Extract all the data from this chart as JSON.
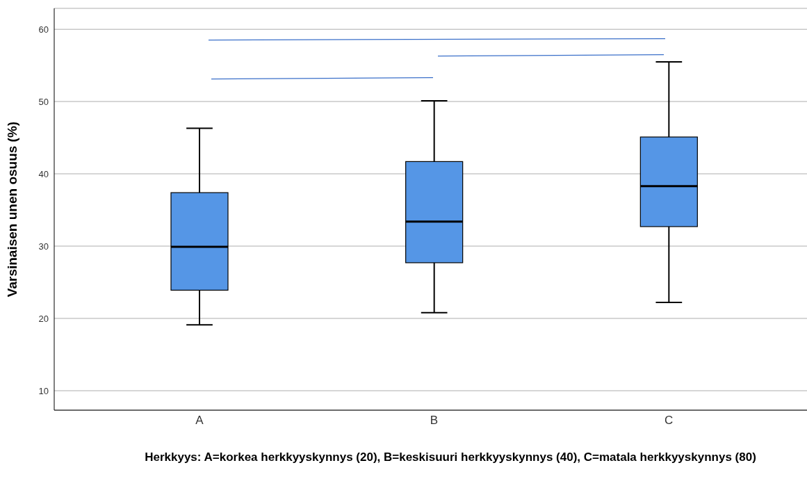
{
  "chart_data": {
    "type": "box",
    "categories": [
      "A",
      "B",
      "C"
    ],
    "boxes": [
      {
        "low": 19.1,
        "q1": 23.9,
        "median": 29.9,
        "q3": 37.4,
        "high": 46.3
      },
      {
        "low": 20.8,
        "q1": 27.7,
        "median": 33.4,
        "q3": 41.7,
        "high": 50.1
      },
      {
        "low": 22.2,
        "q1": 32.7,
        "median": 38.3,
        "q3": 45.1,
        "high": 55.5
      }
    ],
    "color": "#5596e6",
    "ylim": [
      7.3,
      62.9
    ],
    "yticks": [
      10,
      20,
      30,
      40,
      50,
      60
    ],
    "grid": "y",
    "ylabel": "Varsinaisen unen osuus (%)",
    "xlabel": "Herkkyys: A=korkea herkkyyskynnys (20), B=keskisuuri herkkyyskynnys (40), C=matala herkkyyskynnys (80)"
  }
}
